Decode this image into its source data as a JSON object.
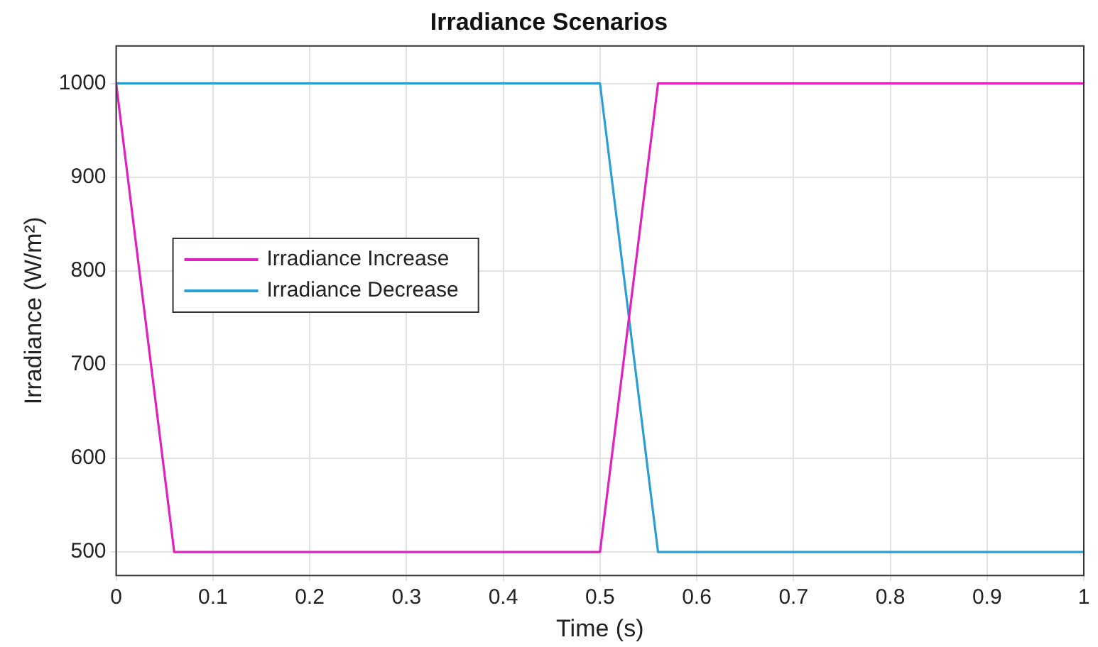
{
  "chart_data": {
    "type": "line",
    "title": "Irradiance Scenarios",
    "xlabel": "Time (s)",
    "ylabel": "Irradiance (W/m²)",
    "series": [
      {
        "name": "Irradiance Increase",
        "color": "#e020c0",
        "x": [
          0,
          0.06,
          0.5,
          0.56,
          1
        ],
        "values": [
          1000,
          500,
          500,
          1000,
          1000
        ]
      },
      {
        "name": "Irradiance Decrease",
        "color": "#2a9fd6",
        "x": [
          0,
          0.5,
          0.56,
          1
        ],
        "values": [
          1000,
          1000,
          500,
          500
        ]
      }
    ],
    "xlim": [
      0,
      1
    ],
    "xticks": [
      0,
      0.1,
      0.2,
      0.3,
      0.4,
      0.5,
      0.6,
      0.7,
      0.8,
      0.9,
      1
    ],
    "ylim": [
      475,
      1040
    ],
    "yticks": [
      500,
      600,
      700,
      800,
      900,
      1000
    ],
    "grid": true,
    "legend": "left",
    "marker": "none",
    "line_style": "solid"
  }
}
